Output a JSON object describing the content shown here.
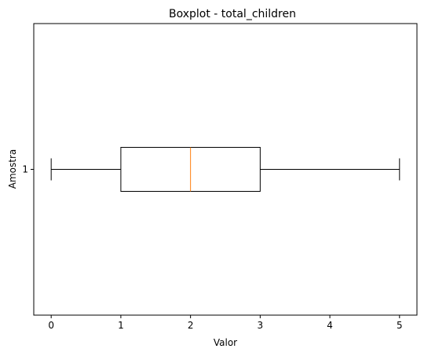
{
  "chart_data": {
    "type": "boxplot",
    "title": "Boxplot - total_children",
    "xlabel": "Valor",
    "ylabel": "Amostra",
    "orientation": "horizontal",
    "xlim": [
      -0.25,
      5.25
    ],
    "x_ticks": [
      "0",
      "1",
      "2",
      "3",
      "4",
      "5"
    ],
    "y_ticks": [
      "1"
    ],
    "grid": false,
    "boxes": [
      {
        "position": "1",
        "whisker_low": 0,
        "q1": 1,
        "median": 2,
        "q3": 3,
        "whisker_high": 5
      }
    ],
    "colors": {
      "box": "#000000",
      "median": "#ff7f0e"
    }
  }
}
